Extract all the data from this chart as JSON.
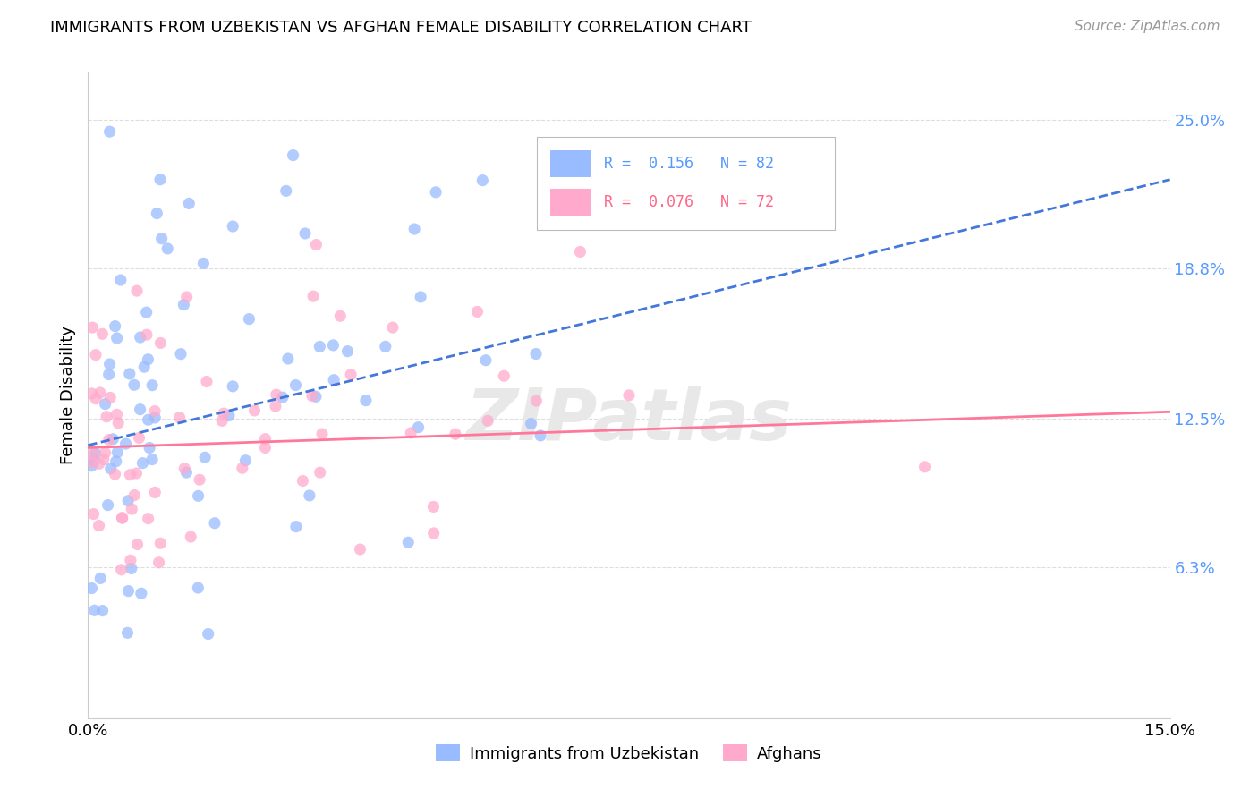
{
  "title": "IMMIGRANTS FROM UZBEKISTAN VS AFGHAN FEMALE DISABILITY CORRELATION CHART",
  "source": "Source: ZipAtlas.com",
  "ylabel": "Female Disability",
  "ytick_labels": [
    "25.0%",
    "18.8%",
    "12.5%",
    "6.3%"
  ],
  "ytick_values": [
    0.25,
    0.188,
    0.125,
    0.063
  ],
  "xmin": 0.0,
  "xmax": 0.15,
  "ymin": 0.0,
  "ymax": 0.27,
  "color_uzbek": "#99bbff",
  "color_afghan": "#ffaacc",
  "color_uzbek_line": "#4477dd",
  "color_afghan_line": "#ff7799",
  "watermark_text": "ZIPatlas",
  "legend_label1": "R =  0.156   N = 82",
  "legend_label2": "R =  0.076   N = 72",
  "legend_color1": "#5599ff",
  "legend_color2": "#ff6688",
  "bottom_legend1": "Immigrants from Uzbekistan",
  "bottom_legend2": "Afghans"
}
